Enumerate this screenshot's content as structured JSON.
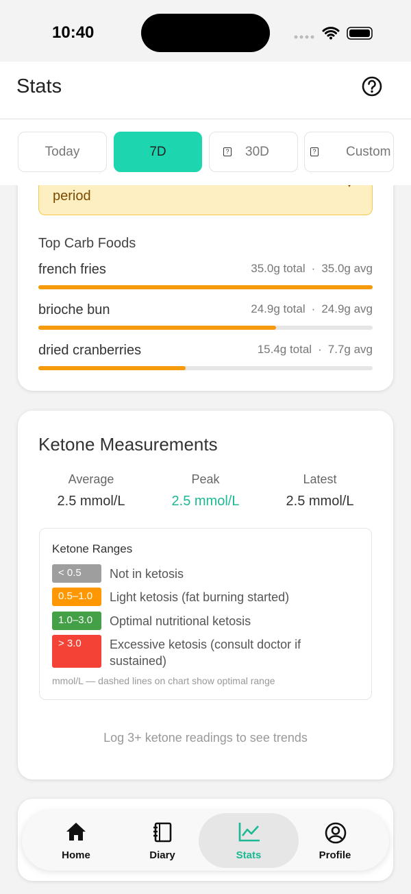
{
  "status_bar": {
    "time": "10:40"
  },
  "header": {
    "title": "Stats"
  },
  "tabs": [
    {
      "label": "Today",
      "active": false
    },
    {
      "label": "7D",
      "active": true
    },
    {
      "label": "30D",
      "active": false
    },
    {
      "label": "Custom",
      "active": false
    }
  ],
  "warning": {
    "text": "period"
  },
  "top_carb_foods": {
    "title": "Top Carb Foods",
    "separator": "·",
    "items": [
      {
        "name": "french fries",
        "total_g": 35.0,
        "total_label": "35.0g total",
        "avg_label": "35.0g avg"
      },
      {
        "name": "brioche bun",
        "total_g": 24.9,
        "total_label": "24.9g total",
        "avg_label": "24.9g avg"
      },
      {
        "name": "dried cranberries",
        "total_g": 15.4,
        "total_label": "15.4g total",
        "avg_label": "7.7g avg"
      }
    ]
  },
  "ketone": {
    "title": "Ketone Measurements",
    "stats": [
      {
        "label": "Average",
        "value": "2.5 mmol/L",
        "highlight": false
      },
      {
        "label": "Peak",
        "value": "2.5 mmol/L",
        "highlight": true
      },
      {
        "label": "Latest",
        "value": "2.5 mmol/L",
        "highlight": false
      }
    ],
    "ranges": {
      "title": "Ketone Ranges",
      "items": [
        {
          "range": "< 0.5",
          "label": "Not in ketosis",
          "color": "#9e9e9e"
        },
        {
          "range": "0.5–1.0",
          "label": "Light ketosis (fat burning started)",
          "color": "#ff9800"
        },
        {
          "range": "1.0–3.0",
          "label": "Optimal nutritional ketosis",
          "color": "#43a047"
        },
        {
          "range": "> 3.0",
          "label": "Excessive ketosis (consult doctor if sustained)",
          "color": "#f44336"
        }
      ],
      "note": "mmol/L — dashed lines on chart show optimal range"
    },
    "trend_message": "Log 3+ ketone readings to see trends"
  },
  "nav": [
    {
      "label": "Home",
      "active": false
    },
    {
      "label": "Diary",
      "active": false
    },
    {
      "label": "Stats",
      "active": true
    },
    {
      "label": "Profile",
      "active": false
    }
  ]
}
